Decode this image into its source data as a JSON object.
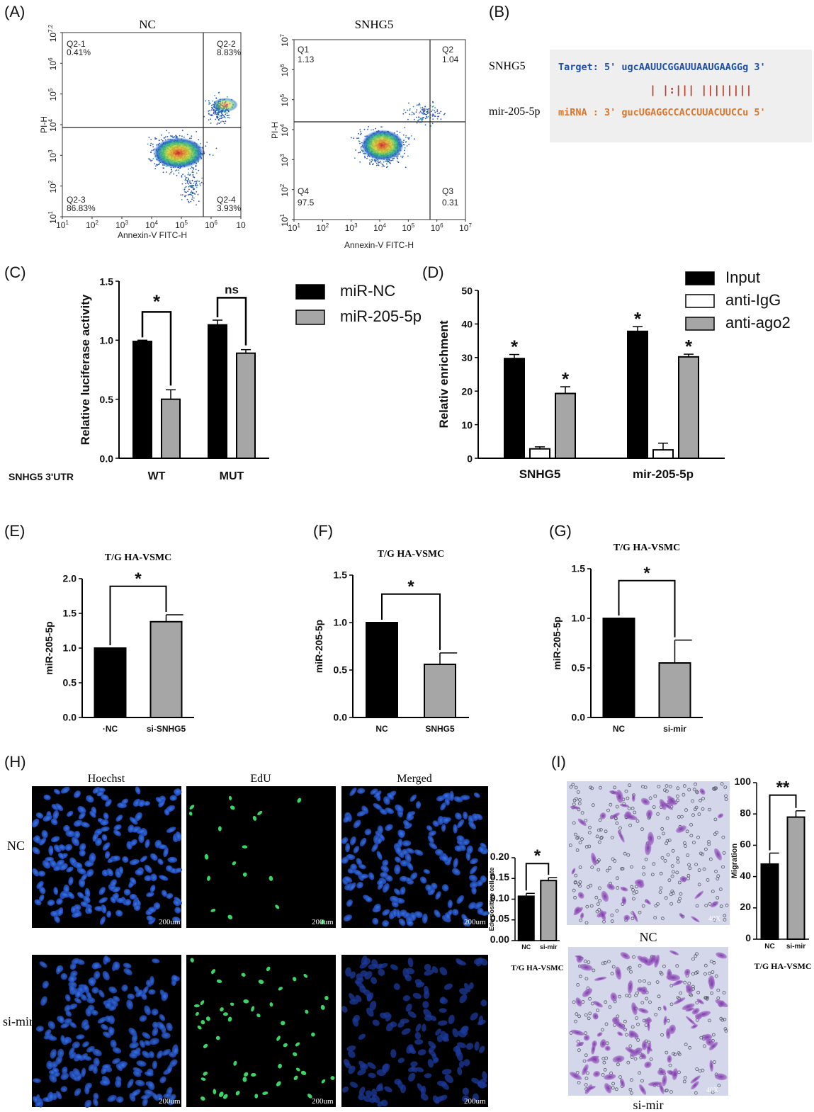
{
  "panel_labels": {
    "A": "(A)",
    "B": "(B)",
    "C": "(C)",
    "D": "(D)",
    "E": "(E)",
    "F": "(F)",
    "G": "(G)",
    "H": "(H)",
    "I": "(I)"
  },
  "panel_a": {
    "nc": {
      "title": "NC",
      "ylabel": "PI-H",
      "xlabel": "Annexin-V FITC-H",
      "yticks": [
        "10^7.2",
        "10^6",
        "10^5",
        "10^4",
        "10^3",
        "10^2",
        "10^1"
      ],
      "xticks": [
        "10^1",
        "10^2",
        "10^3",
        "10^4",
        "10^5",
        "10^6",
        "10"
      ],
      "quadrants": [
        {
          "name": "Q2-1",
          "value": "0.41%"
        },
        {
          "name": "Q2-2",
          "value": "8.83%"
        },
        {
          "name": "Q2-3",
          "value": "86.83%"
        },
        {
          "name": "Q2-4",
          "value": "3.93%"
        }
      ]
    },
    "snhg5": {
      "title": "SNHG5",
      "ylabel": "PI-H",
      "xlabel": "Annexin-V FITC-H",
      "yticks": [
        "10^7",
        "10^6",
        "10^5",
        "10^4",
        "10^3",
        "10^2",
        "10^1"
      ],
      "xticks": [
        "10^1",
        "10^2",
        "10^3",
        "10^4",
        "10^5",
        "10^6",
        "10^7"
      ],
      "quadrants": [
        {
          "name": "Q1",
          "value": "1.13"
        },
        {
          "name": "Q2",
          "value": "1.04"
        },
        {
          "name": "Q4",
          "value": "97.5"
        },
        {
          "name": "Q3",
          "value": "0.31"
        }
      ]
    }
  },
  "panel_b": {
    "label_top": "SNHG5",
    "label_bottom": "mir-205-5p",
    "target_line": "Target: 5' ugcAAUUCGGAUUAAUGAAGGg 3'",
    "pairing_line": "| |:|||  ||||||||",
    "mirna_line": "miRNA : 3' gucUGAGGCCACCUUACUUCCu 5'",
    "colors": {
      "target": "#1f4fa8",
      "mirna": "#e0752b",
      "pairing": "#c0392b",
      "box": "#efefef"
    }
  },
  "chart_data": [
    {
      "panel": "C",
      "type": "bar",
      "ylabel": "Relative luciferase activity",
      "xlabel_prefix": "SNHG5 3'UTR",
      "categories": [
        "WT",
        "MUT"
      ],
      "ylim": [
        0,
        1.5
      ],
      "yticks": [
        "0.0",
        "0.5",
        "1.0",
        "1.5"
      ],
      "series": [
        {
          "name": "miR-NC",
          "values": [
            0.99,
            1.13
          ],
          "errors": [
            0.01,
            0.04
          ],
          "color": "#000000"
        },
        {
          "name": "miR-205-5p",
          "values": [
            0.5,
            0.89
          ],
          "errors": [
            0.08,
            0.03
          ],
          "color": "#a6a6a6"
        }
      ],
      "annotations": [
        "*",
        "ns"
      ]
    },
    {
      "panel": "D",
      "type": "bar",
      "ylabel": "Relativ enrichment",
      "categories": [
        "SNHG5",
        "mir-205-5p"
      ],
      "ylim": [
        0,
        50
      ],
      "yticks": [
        "0",
        "10",
        "20",
        "30",
        "40",
        "50"
      ],
      "series": [
        {
          "name": "Input",
          "values": [
            29.7,
            37.8
          ],
          "errors": [
            1.2,
            1.4
          ],
          "color": "#000000",
          "marks": [
            "*",
            "*"
          ]
        },
        {
          "name": "anti-IgG",
          "values": [
            2.8,
            2.5
          ],
          "errors": [
            0.6,
            2.0
          ],
          "color": "#ffffff",
          "marks": [
            "",
            ""
          ]
        },
        {
          "name": "anti-ago2",
          "values": [
            19.3,
            30.2
          ],
          "errors": [
            2.0,
            0.8
          ],
          "color": "#a6a6a6",
          "marks": [
            "*",
            "*"
          ]
        }
      ]
    },
    {
      "panel": "E",
      "type": "bar",
      "title": "T/G HA-VSMC",
      "ylabel": "miR-205-5p",
      "categories": [
        "·NC",
        "si-SNHG5"
      ],
      "values": [
        1.0,
        1.38
      ],
      "errors": [
        0,
        0.1
      ],
      "colors": [
        "#000000",
        "#a6a6a6"
      ],
      "ylim": [
        0,
        2.0
      ],
      "yticks": [
        "0.0",
        "0.5",
        "1.0",
        "1.5",
        "2.0"
      ],
      "annotation": "*"
    },
    {
      "panel": "F",
      "type": "bar",
      "title": "T/G HA-VSMC",
      "ylabel": "miR-205-5p",
      "categories": [
        "NC",
        "SNHG5"
      ],
      "values": [
        1.0,
        0.56
      ],
      "errors": [
        0,
        0.12
      ],
      "colors": [
        "#000000",
        "#a6a6a6"
      ],
      "ylim": [
        0,
        1.5
      ],
      "yticks": [
        "0.0",
        "0.5",
        "1.0",
        "1.5"
      ],
      "annotation": "*"
    },
    {
      "panel": "G",
      "type": "bar",
      "title": "T/G HA-VSMC",
      "ylabel": "miR-205-5p",
      "categories": [
        "NC",
        "si-mir"
      ],
      "values": [
        1.0,
        0.55
      ],
      "errors": [
        0,
        0.23
      ],
      "colors": [
        "#000000",
        "#a6a6a6"
      ],
      "ylim": [
        0,
        1.5
      ],
      "yticks": [
        "0.0",
        "0.5",
        "1.0",
        "1.5"
      ],
      "annotation": "*"
    },
    {
      "panel": "H-inset",
      "type": "bar",
      "xlabel": "T/G HA-VSMC",
      "ylabel": "Edu positive cell rate",
      "categories": [
        "NC",
        "si-mir"
      ],
      "values": [
        0.107,
        0.145
      ],
      "errors": [
        0.007,
        0.007
      ],
      "colors": [
        "#000000",
        "#a6a6a6"
      ],
      "ylim": [
        0,
        0.2
      ],
      "yticks": [
        "0.00",
        "0.05",
        "0.10",
        "0.15",
        "0.20"
      ],
      "annotation": "*"
    },
    {
      "panel": "I-inset",
      "type": "bar",
      "xlabel": "T/G HA-VSMC",
      "ylabel": "Migration",
      "categories": [
        "NC",
        "si-mir"
      ],
      "values": [
        48,
        78
      ],
      "errors": [
        7,
        4
      ],
      "colors": [
        "#000000",
        "#a6a6a6"
      ],
      "ylim": [
        0,
        100
      ],
      "yticks": [
        "0",
        "20",
        "40",
        "60",
        "80",
        "100"
      ],
      "annotation": "**"
    }
  ],
  "panel_h": {
    "col_labels": [
      "Hoechst",
      "EdU",
      "Merged"
    ],
    "row_labels": [
      "NC",
      "si-mir"
    ],
    "scale_bar": "200um"
  },
  "panel_i": {
    "top_label": "NC",
    "bottom_label": "si-mir",
    "magnification": "40X"
  }
}
